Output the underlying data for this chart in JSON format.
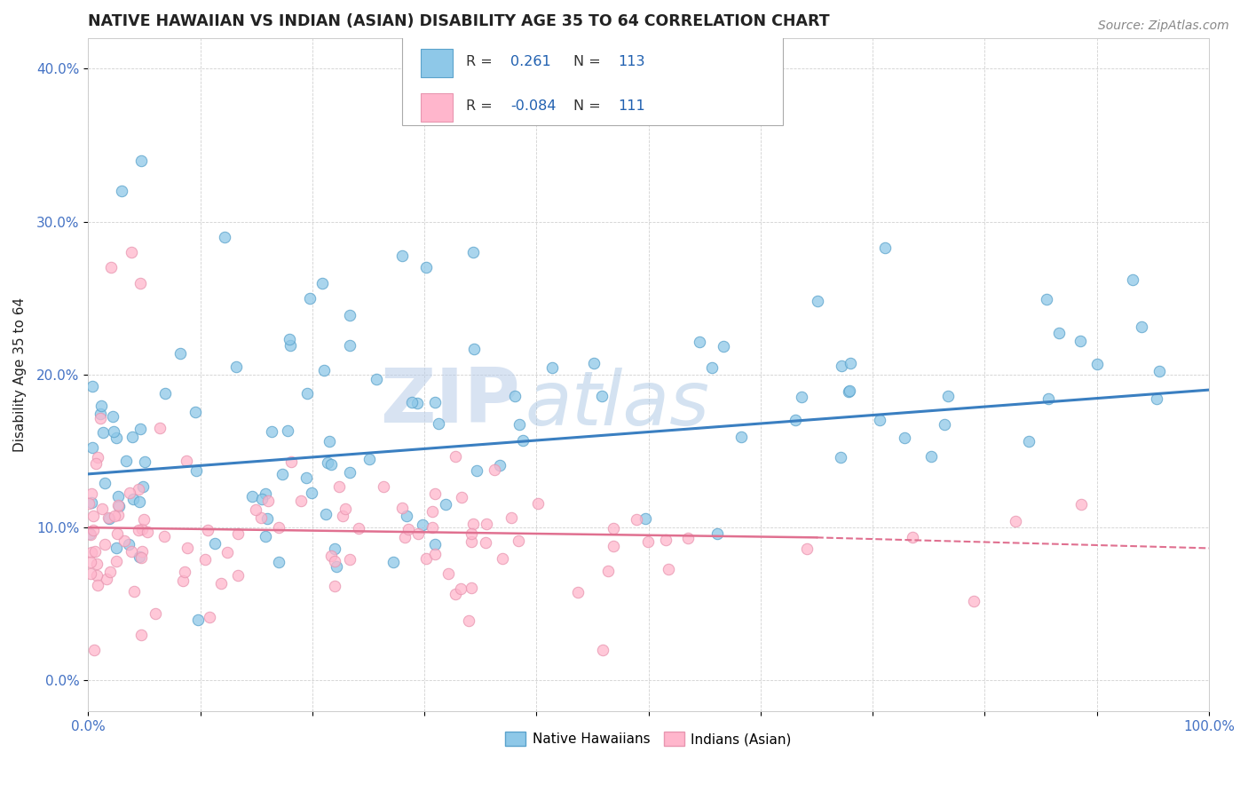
{
  "title": "NATIVE HAWAIIAN VS INDIAN (ASIAN) DISABILITY AGE 35 TO 64 CORRELATION CHART",
  "source_text": "Source: ZipAtlas.com",
  "ylabel": "Disability Age 35 to 64",
  "xlim": [
    0,
    100
  ],
  "ylim": [
    -2,
    42
  ],
  "blue_R": 0.261,
  "blue_N": 113,
  "pink_R": -0.084,
  "pink_N": 111,
  "blue_scatter_color": "#8ec8e8",
  "blue_edge_color": "#5ba3cc",
  "pink_scatter_color": "#ffb6cc",
  "pink_edge_color": "#e896b0",
  "trend_blue_color": "#3a7fc1",
  "trend_pink_color": "#e07090",
  "watermark_color": "#d0dff0",
  "legend_label_blue": "Native Hawaiians",
  "legend_label_pink": "Indians (Asian)",
  "legend_R_color": "#2060b0",
  "legend_N_color": "#2060b0",
  "title_color": "#222222",
  "source_color": "#888888",
  "ylabel_color": "#222222",
  "tick_color": "#4472c4",
  "grid_color": "#cccccc",
  "spine_color": "#cccccc"
}
